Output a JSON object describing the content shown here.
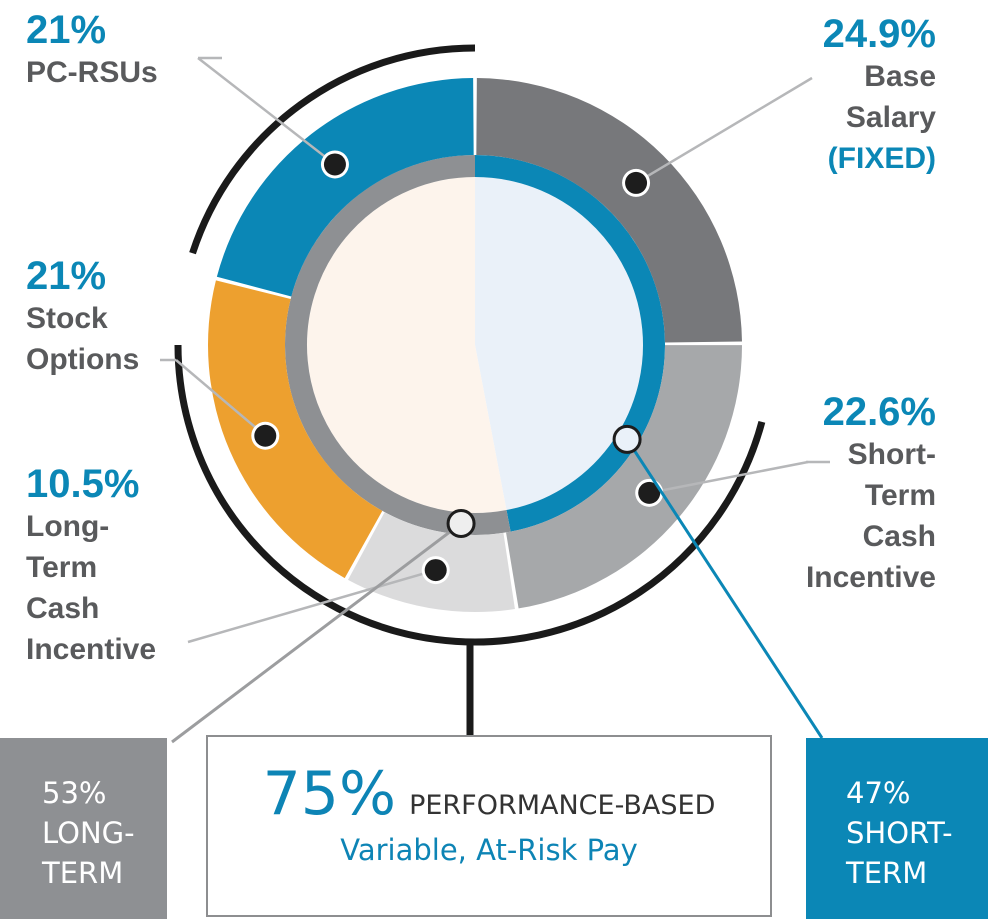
{
  "colors": {
    "blue": "#0b87b6",
    "dark_gray": "#77787b",
    "mid_gray": "#a6a8aa",
    "light_gray": "#dbdbdc",
    "orange": "#eda02f",
    "inner_left": "#fdf4ec",
    "inner_right": "#eaf1f9",
    "ring_gray": "#8e9093",
    "text_gray": "#595a5c",
    "black": "#1a1a1a"
  },
  "chart_data": {
    "type": "pie",
    "title": "",
    "start_angle_deg": 0,
    "slices": [
      {
        "name": "Base Salary (FIXED)",
        "value": 24.9,
        "color": "#77787b",
        "label_pct": "24.9%",
        "label_lines": [
          "Base",
          "Salary",
          "(FIXED)"
        ]
      },
      {
        "name": "Short-Term Cash Incentive",
        "value": 22.6,
        "color": "#a6a8aa",
        "label_pct": "22.6%",
        "label_lines": [
          "Short-",
          "Term",
          "Cash",
          "Incentive"
        ]
      },
      {
        "name": "Long-Term Cash Incentive",
        "value": 10.5,
        "color": "#dbdbdc",
        "label_pct": "10.5%",
        "label_lines": [
          "Long-",
          "Term",
          "Cash",
          "Incentive"
        ]
      },
      {
        "name": "Stock Options",
        "value": 21,
        "color": "#eda02f",
        "label_pct": "21%",
        "label_lines": [
          "Stock",
          "Options"
        ]
      },
      {
        "name": "PC-RSUs",
        "value": 21,
        "color": "#0b87b6",
        "label_pct": "21%",
        "label_lines": [
          "PC-RSUs"
        ]
      }
    ],
    "inner_split": [
      {
        "name": "SHORT-TERM",
        "value": 47
      },
      {
        "name": "LONG-TERM",
        "value": 53
      }
    ],
    "summary": {
      "performance_pct": "75%",
      "performance_label": "PERFORMANCE-BASED",
      "performance_sub": "Variable, At-Risk Pay",
      "long_term_pct": "53%",
      "long_term_label_1": "LONG-",
      "long_term_label_2": "TERM",
      "short_term_pct": "47%",
      "short_term_label_1": "SHORT-",
      "short_term_label_2": "TERM"
    }
  }
}
